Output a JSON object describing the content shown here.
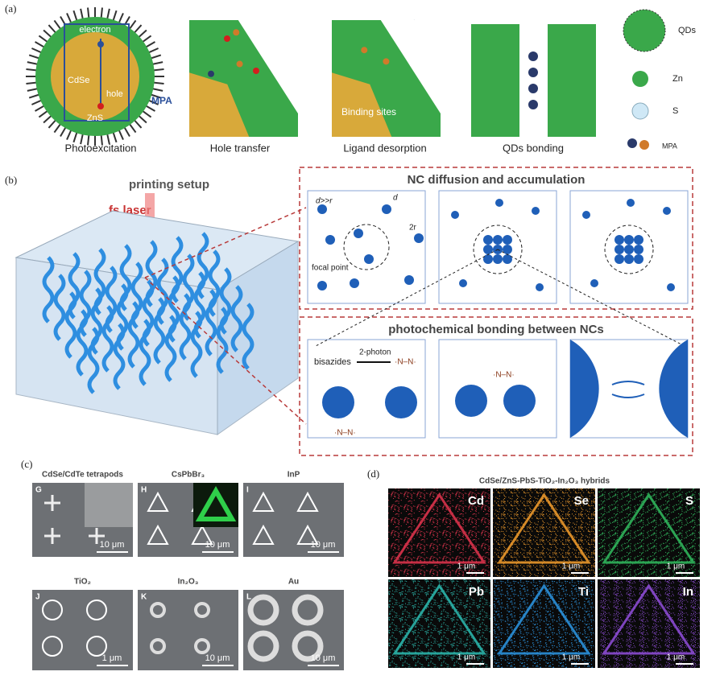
{
  "panel_a": {
    "label": "(a)",
    "steps": [
      {
        "caption": "Photoexcitation",
        "labels": [
          "electron",
          "CdSe",
          "hole",
          "ZnS",
          "MPA"
        ]
      },
      {
        "caption": "Hole transfer"
      },
      {
        "caption": "Ligand desorption",
        "labels": [
          "Binding sites"
        ]
      },
      {
        "caption": "QDs bonding"
      }
    ],
    "legend": [
      "QDs",
      "Zn",
      "S",
      "MPA"
    ]
  },
  "panel_b": {
    "label": "(b)",
    "setup": "printing setup",
    "laser": "fs laser",
    "diffusion": {
      "title": "NC diffusion and accumulation",
      "labels": [
        "d>>r",
        "d",
        "2r",
        "focal point"
      ]
    },
    "bonding": {
      "title": "photochemical bonding between NCs",
      "bisazides": "bisazides",
      "photon": "2-photon",
      "radical": "·N–N·"
    }
  },
  "panel_c": {
    "label": "(c)",
    "images": [
      {
        "letter": "G",
        "title": "CdSe/CdTe tetrapods",
        "scale": "10 μm"
      },
      {
        "letter": "H",
        "title": "CsPbBr₃",
        "scale": "10 μm"
      },
      {
        "letter": "I",
        "title": "InP",
        "scale": "10 μm"
      },
      {
        "letter": "J",
        "title": "TiO₂",
        "scale": "1 μm"
      },
      {
        "letter": "K",
        "title": "In₂O₃",
        "scale": "10 μm"
      },
      {
        "letter": "L",
        "title": "Au",
        "scale": "10 μm"
      }
    ]
  },
  "panel_d": {
    "label": "(d)",
    "title": "CdSe/ZnS-PbS-TiO₂-In₂O₃ hybrids",
    "maps": [
      {
        "element": "Cd",
        "color": "#d8324a",
        "scale": "1 μm"
      },
      {
        "element": "Se",
        "color": "#e8962a",
        "scale": "1 μm"
      },
      {
        "element": "S",
        "color": "#2fb25a",
        "scale": "1 μm"
      },
      {
        "element": "Pb",
        "color": "#2ab3a8",
        "scale": "1 μm"
      },
      {
        "element": "Ti",
        "color": "#2a8fd8",
        "scale": "1 μm"
      },
      {
        "element": "In",
        "color": "#8a4ad0",
        "scale": "1 μm"
      }
    ]
  }
}
